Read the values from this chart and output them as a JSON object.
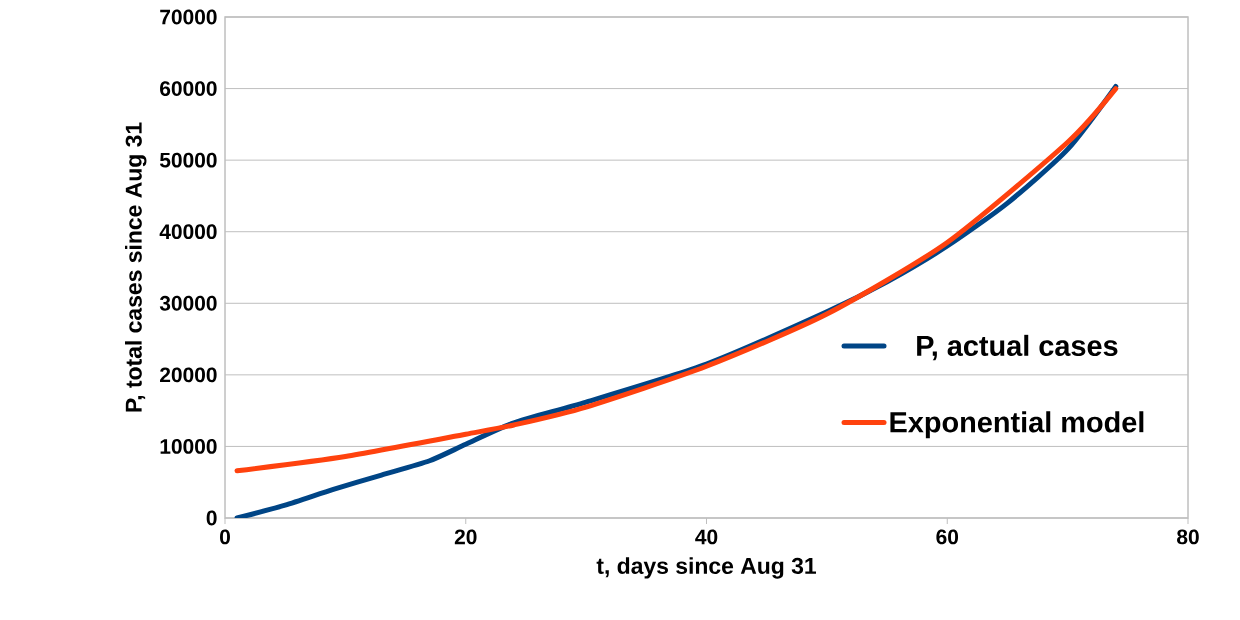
{
  "chart_data": {
    "type": "line",
    "xlabel": "t, days since Aug 31",
    "ylabel": "P, total cases since Aug 31",
    "xlim": [
      0,
      80
    ],
    "xticks": [
      0,
      20,
      40,
      60,
      80
    ],
    "ylim": [
      0,
      70000
    ],
    "yticks": [
      0,
      10000,
      20000,
      30000,
      40000,
      50000,
      60000,
      70000
    ],
    "grid": "y",
    "legend": "right",
    "line_style": "solid",
    "series": [
      {
        "name": "P, actual cases",
        "color": "#004586",
        "x": [
          1,
          5,
          9,
          13,
          17,
          20,
          24,
          30,
          40,
          50,
          55,
          60,
          65,
          70,
          74
        ],
        "values": [
          0,
          1800,
          4000,
          6000,
          8000,
          10300,
          13300,
          16200,
          21500,
          28800,
          33000,
          38000,
          44000,
          51500,
          60300
        ]
      },
      {
        "name": "Exponential model",
        "color": "#ff420e",
        "x": [
          1,
          10,
          20,
          24,
          30,
          40,
          50,
          60,
          70,
          74
        ],
        "values": [
          6600,
          8600,
          11700,
          13000,
          15500,
          21200,
          28500,
          38500,
          52500,
          60000
        ]
      }
    ]
  }
}
